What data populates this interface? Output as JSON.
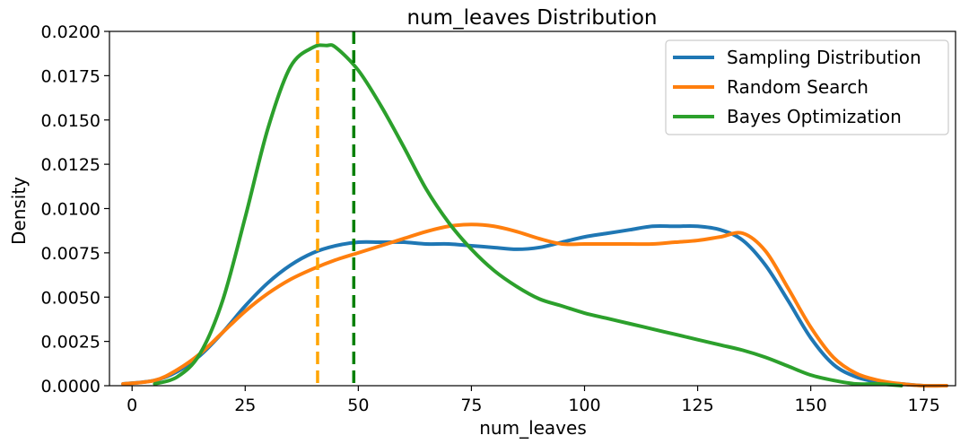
{
  "chart_data": {
    "type": "line",
    "title": "num_leaves Distribution",
    "xlabel": "num_leaves",
    "ylabel": "Density",
    "xlim": [
      -5,
      182
    ],
    "ylim": [
      0,
      0.02
    ],
    "xticks": [
      0,
      25,
      50,
      75,
      100,
      125,
      150,
      175
    ],
    "xtick_labels": [
      "0",
      "25",
      "50",
      "75",
      "100",
      "125",
      "150",
      "175"
    ],
    "yticks": [
      0,
      0.0025,
      0.005,
      0.0075,
      0.01,
      0.0125,
      0.015,
      0.0175,
      0.02
    ],
    "ytick_labels": [
      "0.0000",
      "0.0025",
      "0.0050",
      "0.0075",
      "0.0100",
      "0.0125",
      "0.0150",
      "0.0175",
      "0.0200"
    ],
    "grid": false,
    "legend_position": "top-right",
    "series": [
      {
        "name": "Sampling Distribution",
        "color": "#1f77b4",
        "x": [
          -2,
          5,
          10,
          15,
          20,
          25,
          30,
          35,
          40,
          45,
          50,
          55,
          60,
          65,
          70,
          75,
          80,
          85,
          90,
          95,
          100,
          105,
          110,
          115,
          120,
          125,
          130,
          135,
          140,
          145,
          150,
          155,
          160,
          165,
          170,
          175,
          180
        ],
        "y": [
          0.0001,
          0.0003,
          0.0008,
          0.0017,
          0.003,
          0.0045,
          0.0058,
          0.0068,
          0.0075,
          0.0079,
          0.0081,
          0.0081,
          0.0081,
          0.008,
          0.008,
          0.0079,
          0.0078,
          0.0077,
          0.0078,
          0.0081,
          0.0084,
          0.0086,
          0.0088,
          0.009,
          0.009,
          0.009,
          0.0088,
          0.0082,
          0.0068,
          0.0048,
          0.0027,
          0.0012,
          0.0005,
          0.0002,
          0.0001,
          0.0,
          0.0
        ]
      },
      {
        "name": "Random Search",
        "color": "#ff7f0e",
        "x": [
          -2,
          5,
          10,
          15,
          20,
          25,
          30,
          35,
          40,
          45,
          50,
          55,
          60,
          65,
          70,
          75,
          80,
          85,
          90,
          95,
          100,
          105,
          110,
          115,
          120,
          125,
          130,
          135,
          140,
          145,
          150,
          155,
          160,
          165,
          170,
          175,
          180
        ],
        "y": [
          0.0001,
          0.0003,
          0.0009,
          0.0018,
          0.003,
          0.0042,
          0.0052,
          0.006,
          0.0066,
          0.0071,
          0.0075,
          0.0079,
          0.0083,
          0.0087,
          0.009,
          0.0091,
          0.009,
          0.0087,
          0.0083,
          0.008,
          0.008,
          0.008,
          0.008,
          0.008,
          0.0081,
          0.0082,
          0.0084,
          0.0086,
          0.0076,
          0.0055,
          0.0033,
          0.0016,
          0.0007,
          0.0003,
          0.0001,
          0.0,
          0.0
        ]
      },
      {
        "name": "Bayes Optimization",
        "color": "#2ca02c",
        "x": [
          5,
          10,
          15,
          20,
          25,
          30,
          35,
          40,
          43,
          45,
          50,
          55,
          60,
          65,
          70,
          75,
          80,
          85,
          90,
          95,
          100,
          105,
          110,
          115,
          120,
          125,
          130,
          135,
          140,
          145,
          150,
          155,
          160,
          165,
          170
        ],
        "y": [
          0.0001,
          0.0005,
          0.0018,
          0.0048,
          0.0095,
          0.0145,
          0.018,
          0.0191,
          0.0192,
          0.0191,
          0.0178,
          0.0158,
          0.0135,
          0.0111,
          0.0092,
          0.0077,
          0.0065,
          0.0056,
          0.0049,
          0.0045,
          0.0041,
          0.0038,
          0.0035,
          0.0032,
          0.0029,
          0.0026,
          0.0023,
          0.002,
          0.0016,
          0.0011,
          0.0006,
          0.0003,
          0.0001,
          0.0001,
          0.0
        ]
      }
    ],
    "vlines": [
      {
        "x": 41,
        "color": "#ffa500",
        "style": "dashed"
      },
      {
        "x": 49,
        "color": "#008000",
        "style": "dashed"
      }
    ]
  }
}
